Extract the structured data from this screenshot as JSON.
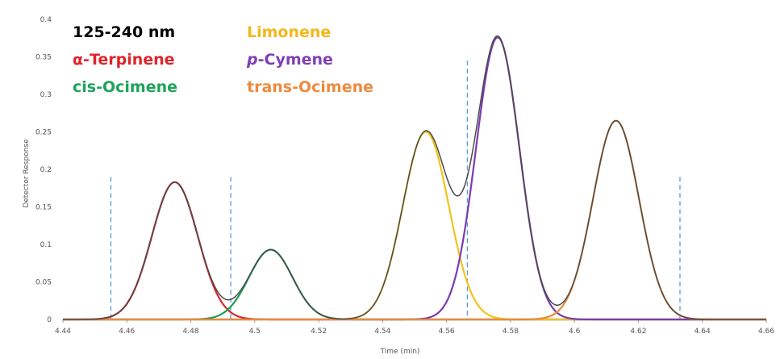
{
  "chart_data": {
    "type": "line",
    "xlabel": "Time (min)",
    "ylabel": "Detector Response",
    "xlim": [
      4.44,
      4.66
    ],
    "ylim": [
      0,
      0.4
    ],
    "xticks": [
      "4.44",
      "4.46",
      "4.48",
      "4.5",
      "4.52",
      "4.54",
      "4.56",
      "4.58",
      "4.6",
      "4.62",
      "4.64",
      "4.66"
    ],
    "yticks": [
      "0",
      "0.05",
      "0.1",
      "0.15",
      "0.2",
      "0.25",
      "0.3",
      "0.35",
      "0.4"
    ],
    "grid": false,
    "legend_position": "top-left",
    "vertical_markers": [
      4.455,
      4.4925,
      4.5665,
      4.633
    ],
    "series": [
      {
        "name": "125-240 nm",
        "color": "#4a4a4a",
        "display_color": "#000000",
        "peak_center": null,
        "peak_height": null,
        "peak_width": null,
        "display_name_prefix": "",
        "display_name_main": "125-240 nm",
        "italic_prefix": false
      },
      {
        "name": "α-Terpinene",
        "color": "#d9262b",
        "display_color": "#e0242b",
        "peak_center": 4.475,
        "peak_height": 0.183,
        "peak_width": 0.0072,
        "display_name_prefix": "",
        "display_name_main": "α-Terpinene",
        "italic_prefix": false
      },
      {
        "name": "cis-Ocimene",
        "color": "#1a9e55",
        "display_color": "#1fa35c",
        "peak_center": 4.505,
        "peak_height": 0.093,
        "peak_width": 0.0068,
        "display_name_prefix": "",
        "display_name_main": "cis-Ocimene",
        "italic_prefix": false
      },
      {
        "name": "Limonene",
        "color": "#f2c31c",
        "display_color": "#f4b81c",
        "peak_center": 4.5535,
        "peak_height": 0.25,
        "peak_width": 0.0072,
        "display_name_prefix": "",
        "display_name_main": "Limonene",
        "italic_prefix": false
      },
      {
        "name": "p-Cymene",
        "color": "#7a3bb0",
        "display_color": "#7f3fb6",
        "peak_center": 4.576,
        "peak_height": 0.376,
        "peak_width": 0.0068,
        "display_name_prefix": "p",
        "display_name_main": "-Cymene",
        "italic_prefix": true
      },
      {
        "name": "trans-Ocimene",
        "color": "#ec8a3c",
        "display_color": "#ee8a3e",
        "peak_center": 4.613,
        "peak_height": 0.265,
        "peak_width": 0.0072,
        "display_name_prefix": "",
        "display_name_main": "trans-Ocimene",
        "italic_prefix": false
      }
    ],
    "marker_color": "#5b9bd5",
    "axis_color": "#9a9a9a"
  }
}
